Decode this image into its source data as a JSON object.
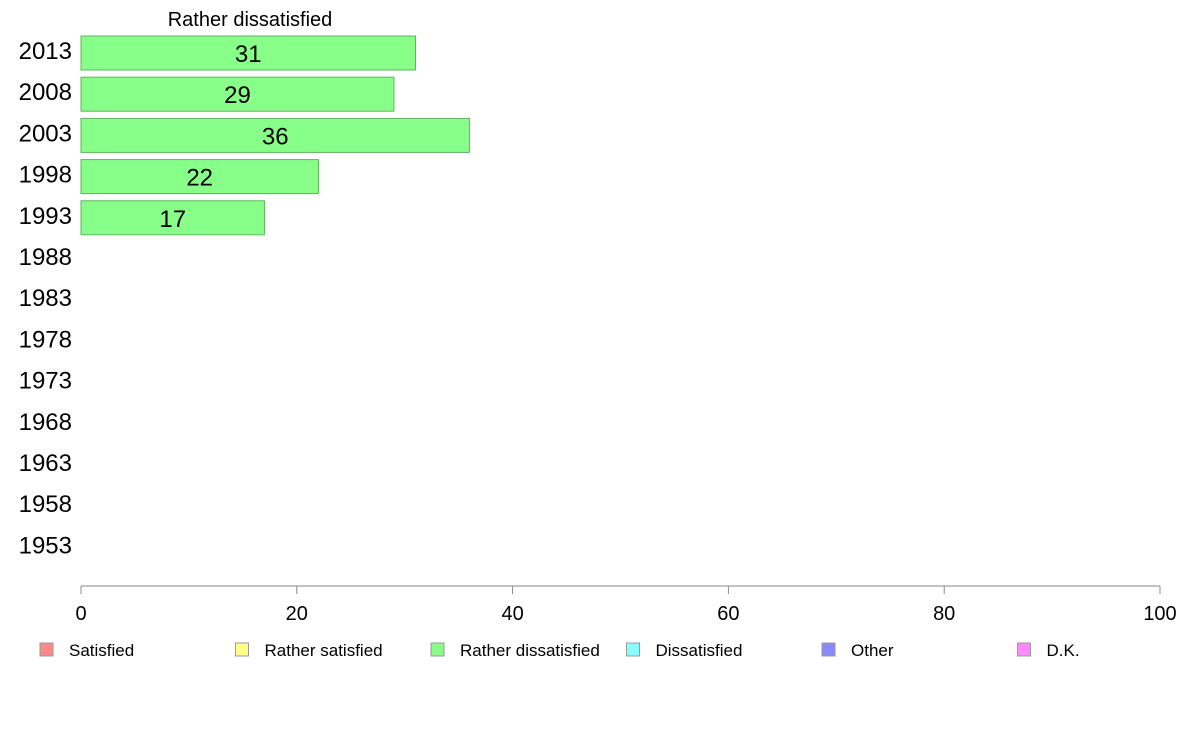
{
  "chart_data": {
    "type": "bar",
    "orientation": "horizontal",
    "title": "Rather dissatisfied",
    "categories": [
      "2013",
      "2008",
      "2003",
      "1998",
      "1993",
      "1988",
      "1983",
      "1978",
      "1973",
      "1968",
      "1963",
      "1958",
      "1953"
    ],
    "series": [
      {
        "name": "Rather dissatisfied",
        "values": [
          31,
          29,
          36,
          22,
          17,
          null,
          null,
          null,
          null,
          null,
          null,
          null,
          null
        ],
        "color": "#88ff88"
      }
    ],
    "xlim": [
      0,
      100
    ],
    "xticks": [
      0,
      20,
      40,
      60,
      80,
      100
    ],
    "grid": false,
    "legend_placement": "bottom",
    "legend": [
      {
        "label": "Satisfied",
        "color": "#ff8888"
      },
      {
        "label": "Rather satisfied",
        "color": "#ffff88"
      },
      {
        "label": "Rather dissatisfied",
        "color": "#88ff88"
      },
      {
        "label": "Dissatisfied",
        "color": "#88ffff"
      },
      {
        "label": "Other",
        "color": "#8888ff"
      },
      {
        "label": "D.K.",
        "color": "#ff88ff"
      }
    ]
  }
}
